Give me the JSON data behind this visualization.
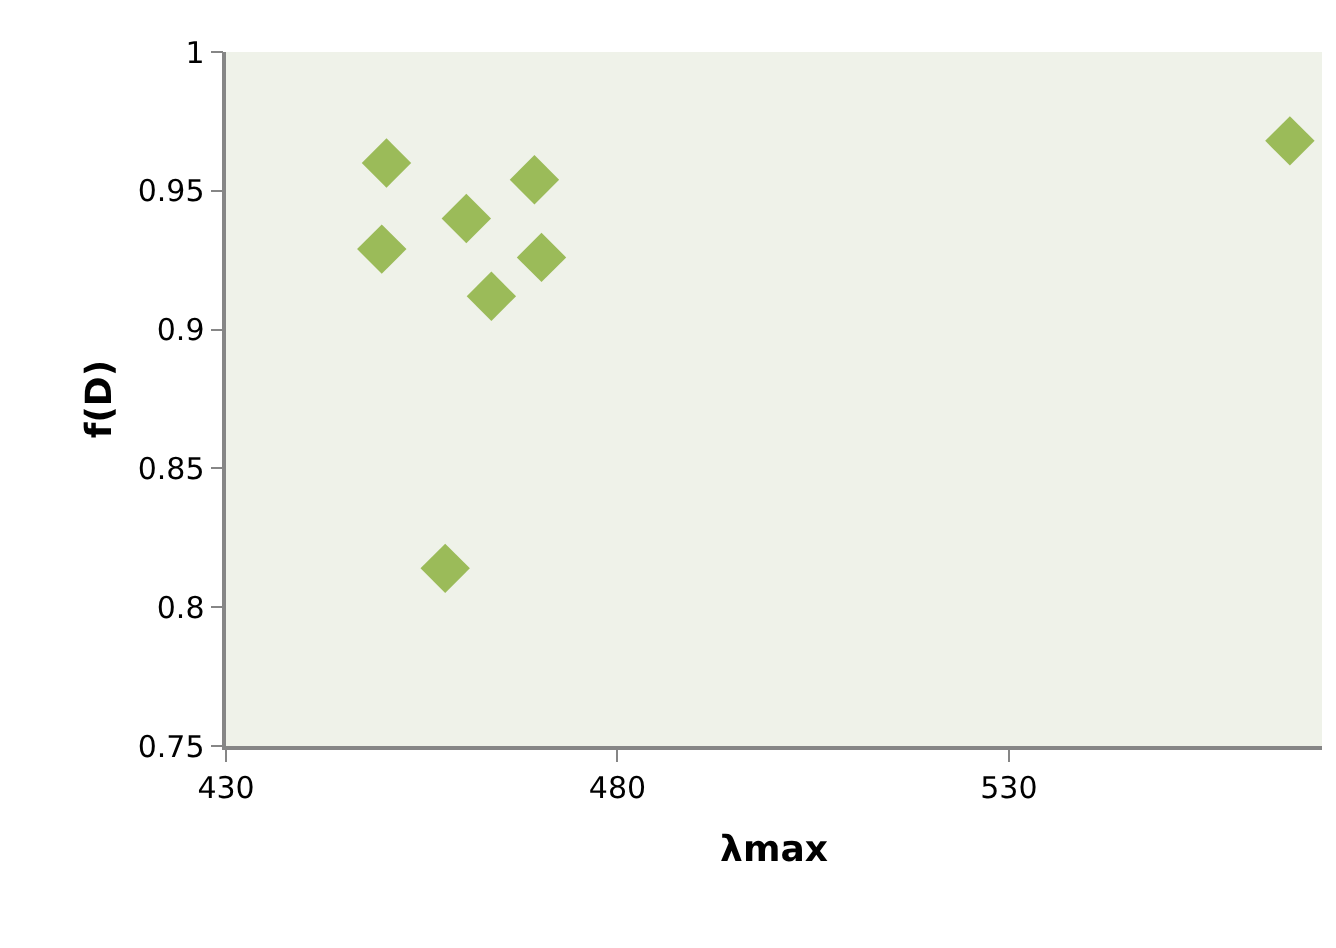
{
  "chart_data": {
    "type": "scatter",
    "xlabel": "λmax",
    "ylabel": "f(D)",
    "x": [
      450.5,
      449.9,
      460.7,
      469.4,
      470.3,
      463.9,
      458.0,
      565.9
    ],
    "values": [
      0.96,
      0.929,
      0.94,
      0.954,
      0.926,
      0.912,
      0.814,
      0.968
    ],
    "color": "#9bbb59",
    "marker": "diamond",
    "xlim": [
      430,
      570
    ],
    "xticks": [
      430,
      480,
      530
    ],
    "ylim": [
      0.75,
      1
    ],
    "yticks": [
      0.75,
      0.8,
      0.85,
      0.9,
      0.95,
      1
    ],
    "grid": false,
    "legend": false
  }
}
